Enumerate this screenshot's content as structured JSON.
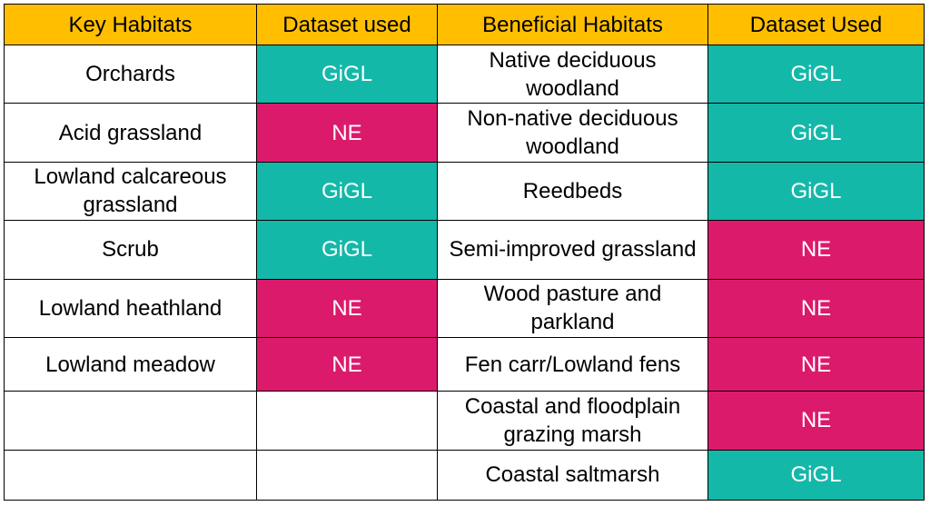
{
  "colors": {
    "header": "#ffbf00",
    "gigl": "#14b8a9",
    "ne": "#dc1a6c",
    "border": "#000000"
  },
  "headers": [
    "Key Habitats",
    "Dataset used",
    "Beneficial Habitats",
    "Dataset Used"
  ],
  "rows": [
    {
      "key_habitat": "Orchards",
      "key_dataset": "GiGL",
      "beneficial_habitat": "Native deciduous woodland",
      "beneficial_dataset": "GiGL"
    },
    {
      "key_habitat": "Acid grassland",
      "key_dataset": "NE",
      "beneficial_habitat": "Non-native deciduous woodland",
      "beneficial_dataset": "GiGL"
    },
    {
      "key_habitat": "Lowland calcareous grassland",
      "key_dataset": "GiGL",
      "beneficial_habitat": "Reedbeds",
      "beneficial_dataset": "GiGL"
    },
    {
      "key_habitat": "Scrub",
      "key_dataset": "GiGL",
      "beneficial_habitat": "Semi-improved grassland",
      "beneficial_dataset": "NE"
    },
    {
      "key_habitat": "Lowland heathland",
      "key_dataset": "NE",
      "beneficial_habitat": "Wood pasture and parkland",
      "beneficial_dataset": "NE"
    },
    {
      "key_habitat": "Lowland meadow",
      "key_dataset": "NE",
      "beneficial_habitat": "Fen carr/Lowland fens",
      "beneficial_dataset": "NE"
    },
    {
      "key_habitat": "",
      "key_dataset": "",
      "beneficial_habitat": "Coastal and floodplain grazing marsh",
      "beneficial_dataset": "NE"
    },
    {
      "key_habitat": "",
      "key_dataset": "",
      "beneficial_habitat": "Coastal saltmarsh",
      "beneficial_dataset": "GiGL"
    }
  ]
}
